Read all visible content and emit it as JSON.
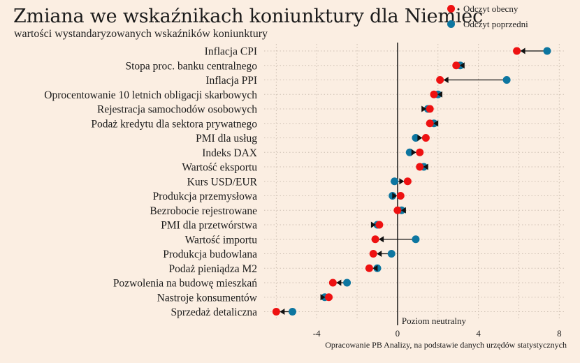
{
  "chart_data": {
    "type": "scatter",
    "title": "Zmiana we wskaźnikach koniunktury dla Niemiec",
    "subtitle": "wartości wystandaryzowanych wskaźników koniunktury",
    "categories": [
      "Inflacja CPI",
      "Stopa proc. banku centralnego",
      "Inflacja PPI",
      "Oprocentowanie 10 letnich obligacji skarbowych",
      "Rejestracja samochodów osobowych",
      "Podaż kredytu dla sektora prywatnego",
      "PMI dla usług",
      "Indeks DAX",
      "Wartość eksportu",
      "Kurs USD/EUR",
      "Produkcja przemysłowa",
      "Bezrobocie rejestrowane",
      "PMI dla przetwórstwa",
      "Wartość importu",
      "Produkcja budowlana",
      "Podaż pieniądza M2",
      "Pozwolenia na budowę mieszkań",
      "Nastroje konsumentów",
      "Sprzedaż detaliczna"
    ],
    "series": [
      {
        "name": "Odczyt obecny",
        "color": "#ee1111",
        "values": [
          5.9,
          2.9,
          2.1,
          1.8,
          1.6,
          1.6,
          1.4,
          1.1,
          1.1,
          0.5,
          0.15,
          0.0,
          -0.9,
          -1.1,
          -1.2,
          -1.4,
          -3.2,
          -3.4,
          -6.0
        ]
      },
      {
        "name": "Odczyt poprzedni",
        "color": "#0d76a0",
        "values": [
          7.4,
          3.1,
          5.4,
          2.0,
          1.5,
          1.8,
          0.9,
          0.6,
          1.3,
          -0.15,
          -0.25,
          0.2,
          -1.0,
          0.9,
          -0.3,
          -1.0,
          -2.5,
          -3.6,
          -5.2
        ]
      }
    ],
    "xlim": [
      -6.6,
      8.3
    ],
    "xticks": [
      "-4",
      "0",
      "4",
      "8"
    ],
    "xtick_values": [
      -4,
      0,
      4,
      8
    ],
    "annotation": "Poziom neutralny",
    "source": "Opracowanie PB Analizy, na podstawie danych urzędów statystycznych",
    "grid": true,
    "legend_position": "top-right"
  }
}
